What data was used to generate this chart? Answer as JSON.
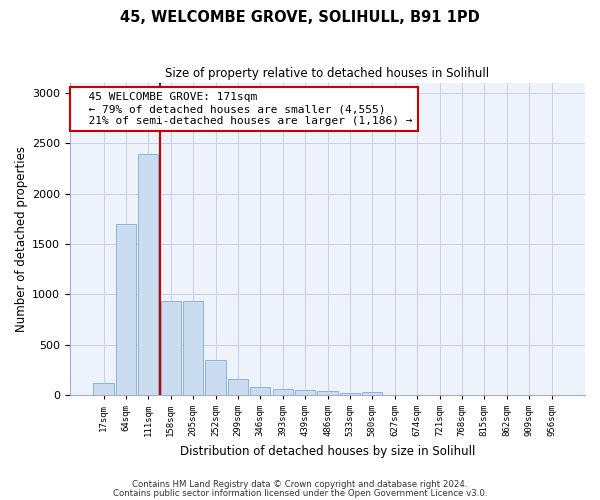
{
  "title": "45, WELCOMBE GROVE, SOLIHULL, B91 1PD",
  "subtitle": "Size of property relative to detached houses in Solihull",
  "xlabel": "Distribution of detached houses by size in Solihull",
  "ylabel": "Number of detached properties",
  "bar_color": "#ccdcf0",
  "bar_edge_color": "#7bafd4",
  "categories": [
    "17sqm",
    "64sqm",
    "111sqm",
    "158sqm",
    "205sqm",
    "252sqm",
    "299sqm",
    "346sqm",
    "393sqm",
    "439sqm",
    "486sqm",
    "533sqm",
    "580sqm",
    "627sqm",
    "674sqm",
    "721sqm",
    "768sqm",
    "815sqm",
    "862sqm",
    "909sqm",
    "956sqm"
  ],
  "values": [
    120,
    1700,
    2390,
    930,
    930,
    350,
    155,
    80,
    60,
    45,
    35,
    20,
    30,
    0,
    0,
    0,
    0,
    0,
    0,
    0,
    0
  ],
  "ylim": [
    0,
    3100
  ],
  "yticks": [
    0,
    500,
    1000,
    1500,
    2000,
    2500,
    3000
  ],
  "vline_x": 2.5,
  "annotation_text": "  45 WELCOMBE GROVE: 171sqm\n  ← 79% of detached houses are smaller (4,555)\n  21% of semi-detached houses are larger (1,186) →",
  "annotation_box_color": "#ffffff",
  "annotation_box_edge_color": "#cc0000",
  "vline_color": "#cc0000",
  "footer1": "Contains HM Land Registry data © Crown copyright and database right 2024.",
  "footer2": "Contains public sector information licensed under the Open Government Licence v3.0.",
  "bg_color": "#eef2fb",
  "grid_color": "#c8cfe8"
}
